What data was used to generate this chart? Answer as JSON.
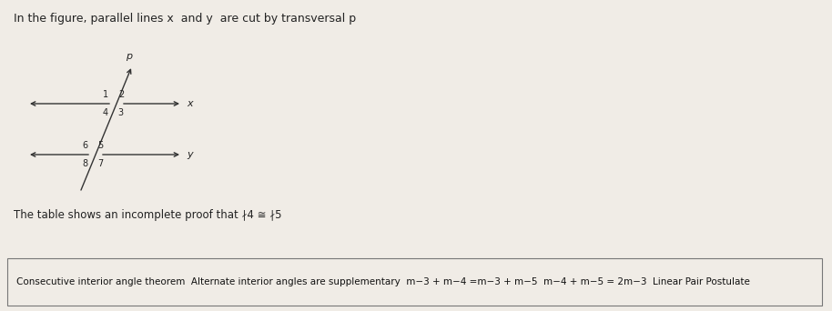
{
  "background_color": "#e8e0d8",
  "page_color": "#f0ece6",
  "title_text": "In the figure, parallel lines x  and y  are cut by transversal p",
  "title_fontsize": 9,
  "title_color": "#222222",
  "subtitle_text": "The table shows an incomplete proof that ∤4 ≅ ∤5",
  "subtitle_fontsize": 8.5,
  "subtitle_color": "#222222",
  "table_text": "Consecutive interior angle theorem  Alternate interior angles are supplementary  m−3 + m−4 =m−3 + m−5  m−4 + m−5 = 2m−3  Linear Pair Postulate",
  "table_fontsize": 7.5,
  "table_color": "#111111",
  "table_border_color": "#777777",
  "table_bg": "#f0ece6",
  "diagram": {
    "line_color": "#333333",
    "label_fontsize": 7,
    "label_color": "#222222",
    "p_label": "p",
    "x_label": "x",
    "y_label": "y"
  }
}
